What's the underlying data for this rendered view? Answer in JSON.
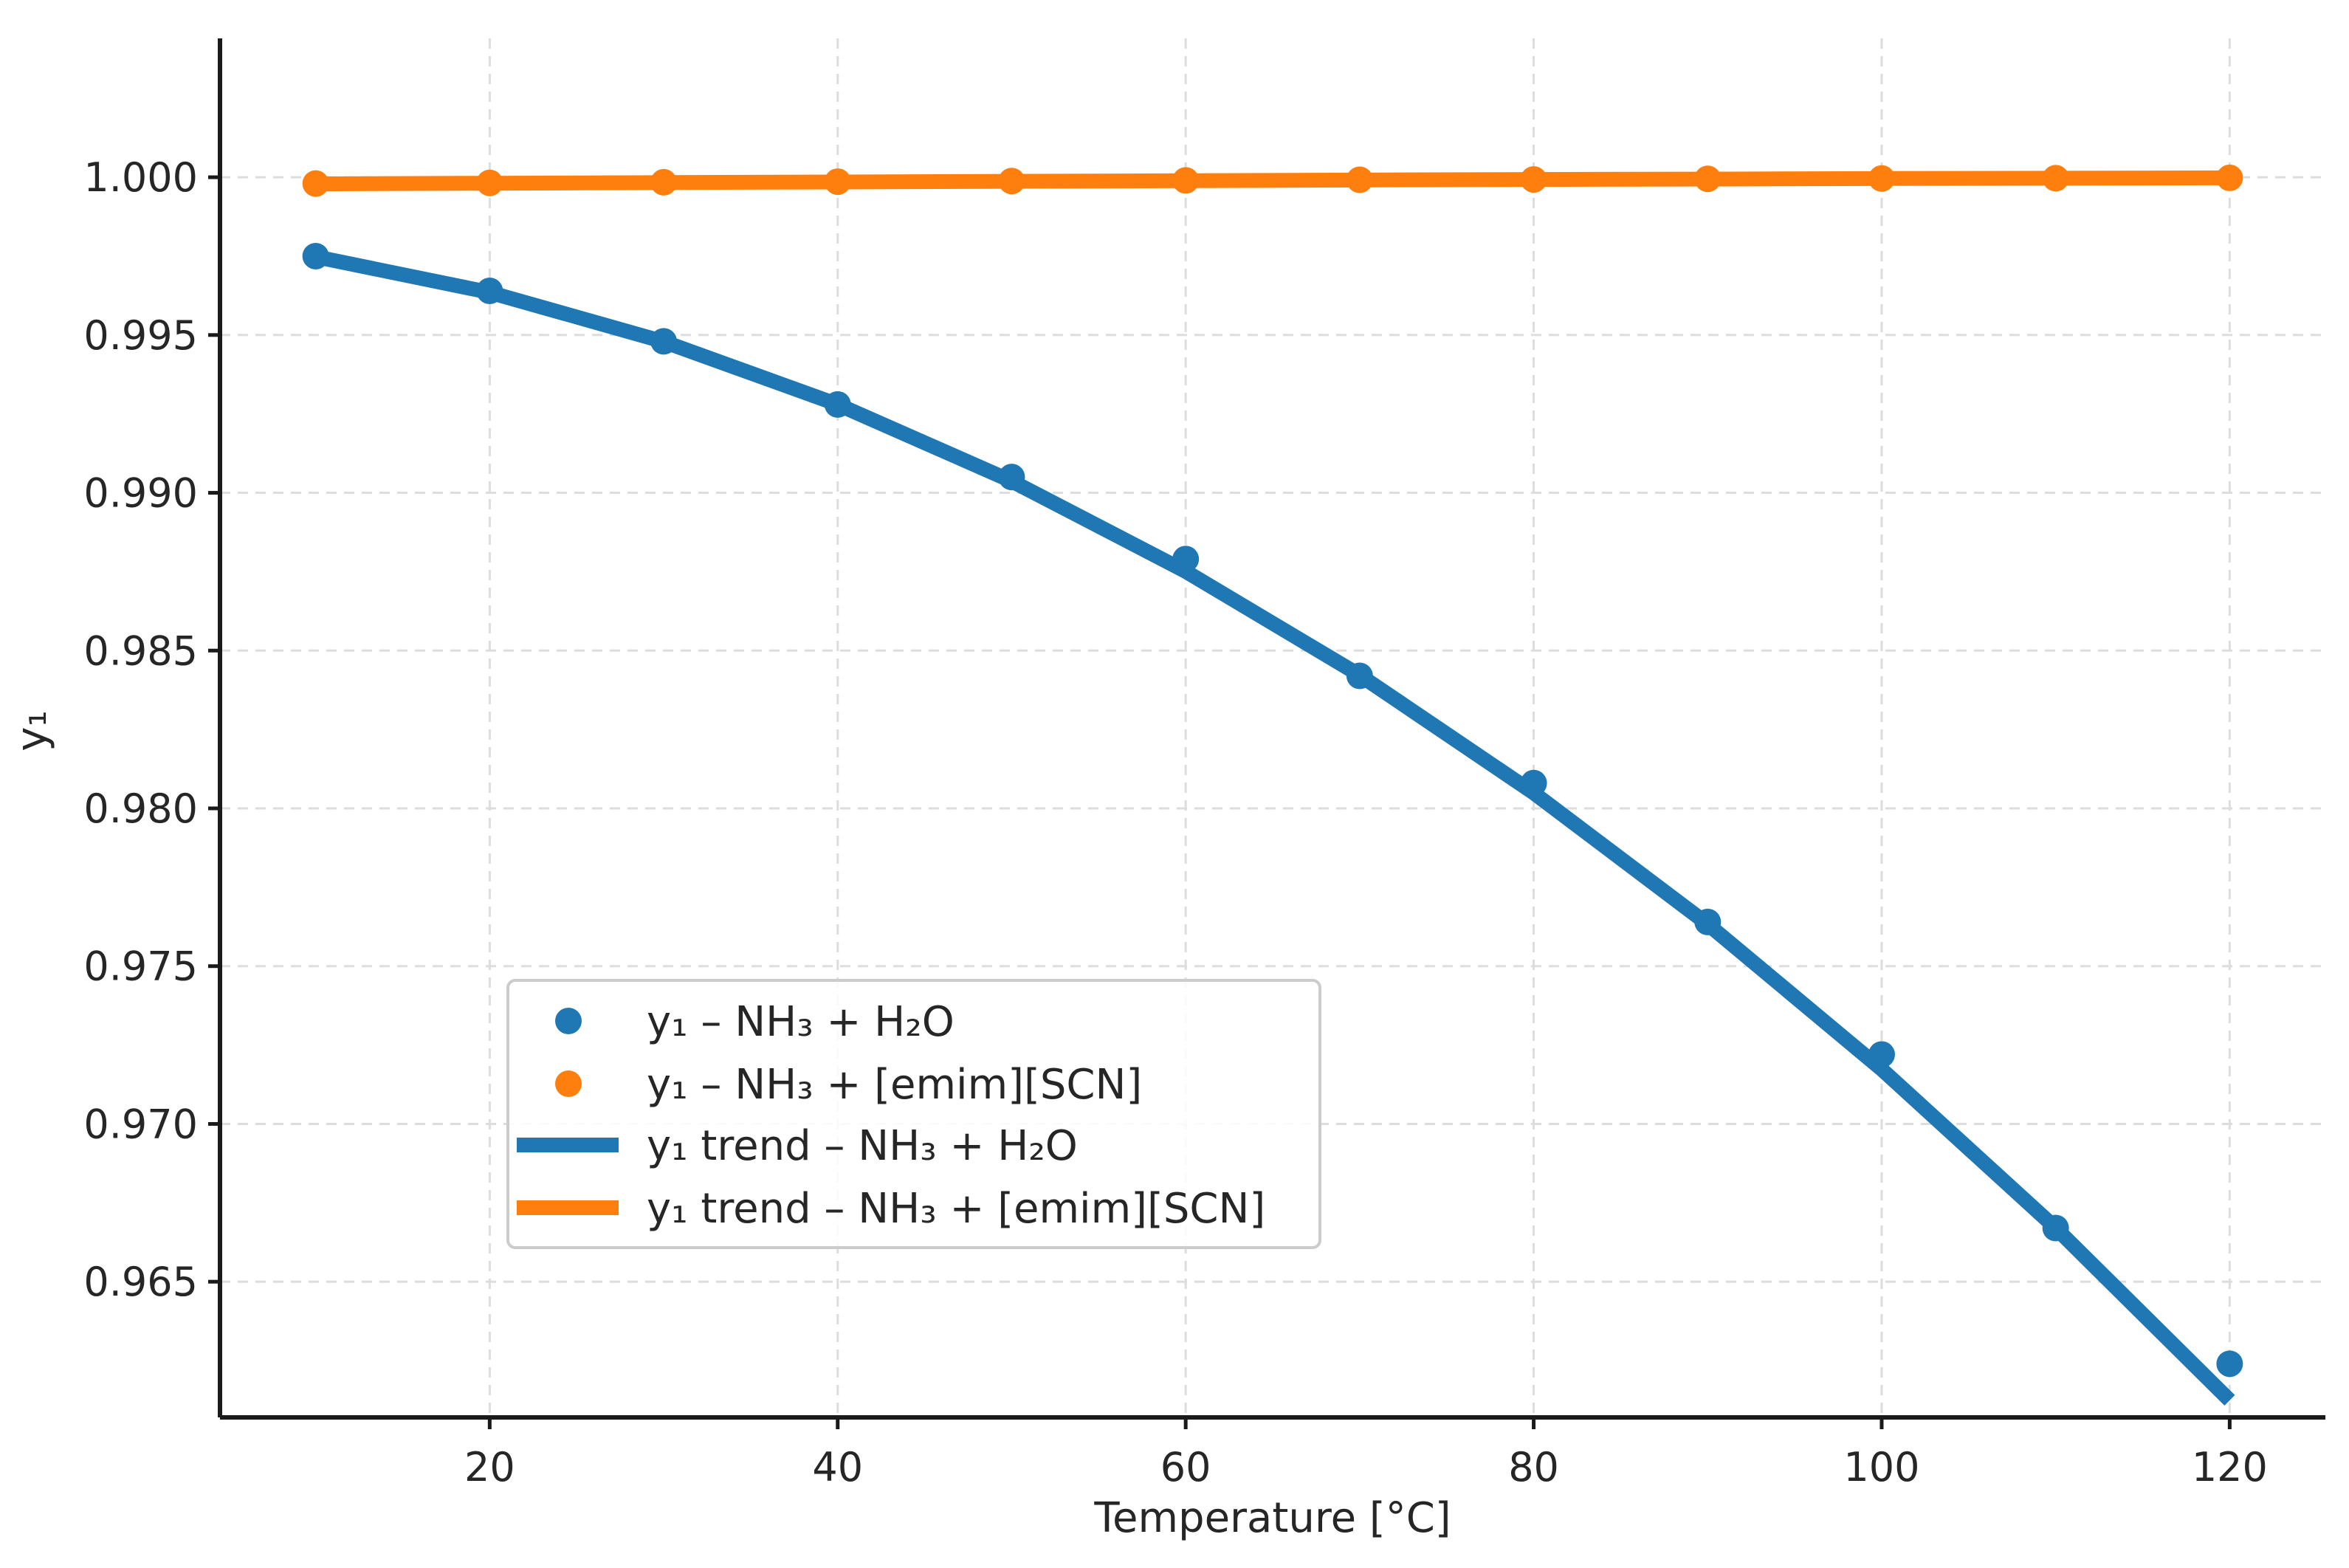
{
  "chart_data": {
    "type": "line",
    "title": "",
    "xlabel": "Temperature [°C]",
    "ylabel": "y₁",
    "xlim": [
      4.5,
      125.5
    ],
    "ylim": [
      0.9607,
      1.0044
    ],
    "xticks": [
      20,
      40,
      60,
      80,
      100,
      120
    ],
    "xtick_labels": [
      "20",
      "40",
      "60",
      "80",
      "100",
      "120"
    ],
    "yticks": [
      0.965,
      0.97,
      0.975,
      0.98,
      0.985,
      0.99,
      0.995,
      1.0
    ],
    "ytick_labels": [
      "0.965",
      "0.970",
      "0.975",
      "0.980",
      "0.985",
      "0.990",
      "0.995",
      "1.000"
    ],
    "grid": true,
    "legend_position": "lower-left",
    "x": [
      10,
      20,
      30,
      40,
      50,
      60,
      70,
      80,
      90,
      100,
      110,
      120
    ],
    "series": [
      {
        "name": "y₁ – NH₃ + H₂O",
        "kind": "scatter",
        "color": "#1f77b4",
        "values": [
          0.9975,
          0.9964,
          0.9948,
          0.9928,
          0.9905,
          0.9879,
          0.9842,
          0.9808,
          0.9764,
          0.9722,
          0.9667,
          0.9624
        ]
      },
      {
        "name": "y₁ – NH₃ + [emim][SCN]",
        "kind": "scatter",
        "color": "#ff7f0e",
        "values": [
          0.9998,
          0.99982,
          0.99984,
          0.99986,
          0.99988,
          0.9999,
          0.99992,
          0.99993,
          0.99995,
          0.99996,
          0.99997,
          0.99998
        ]
      },
      {
        "name": "y₁ trend – NH₃ + H₂O",
        "kind": "line",
        "color": "#1f77b4",
        "values": [
          0.99748,
          0.99635,
          0.99479,
          0.9928,
          0.99037,
          0.98751,
          0.98422,
          0.98049,
          0.97633,
          0.97173,
          0.9667,
          0.96124
        ]
      },
      {
        "name": "y₁ trend – NH₃ + [emim][SCN]",
        "kind": "line",
        "color": "#ff7f0e",
        "values": [
          0.99979,
          0.99981,
          0.99983,
          0.99985,
          0.99987,
          0.99989,
          0.99991,
          0.99993,
          0.99994,
          0.99996,
          0.99997,
          0.99998
        ]
      }
    ]
  }
}
